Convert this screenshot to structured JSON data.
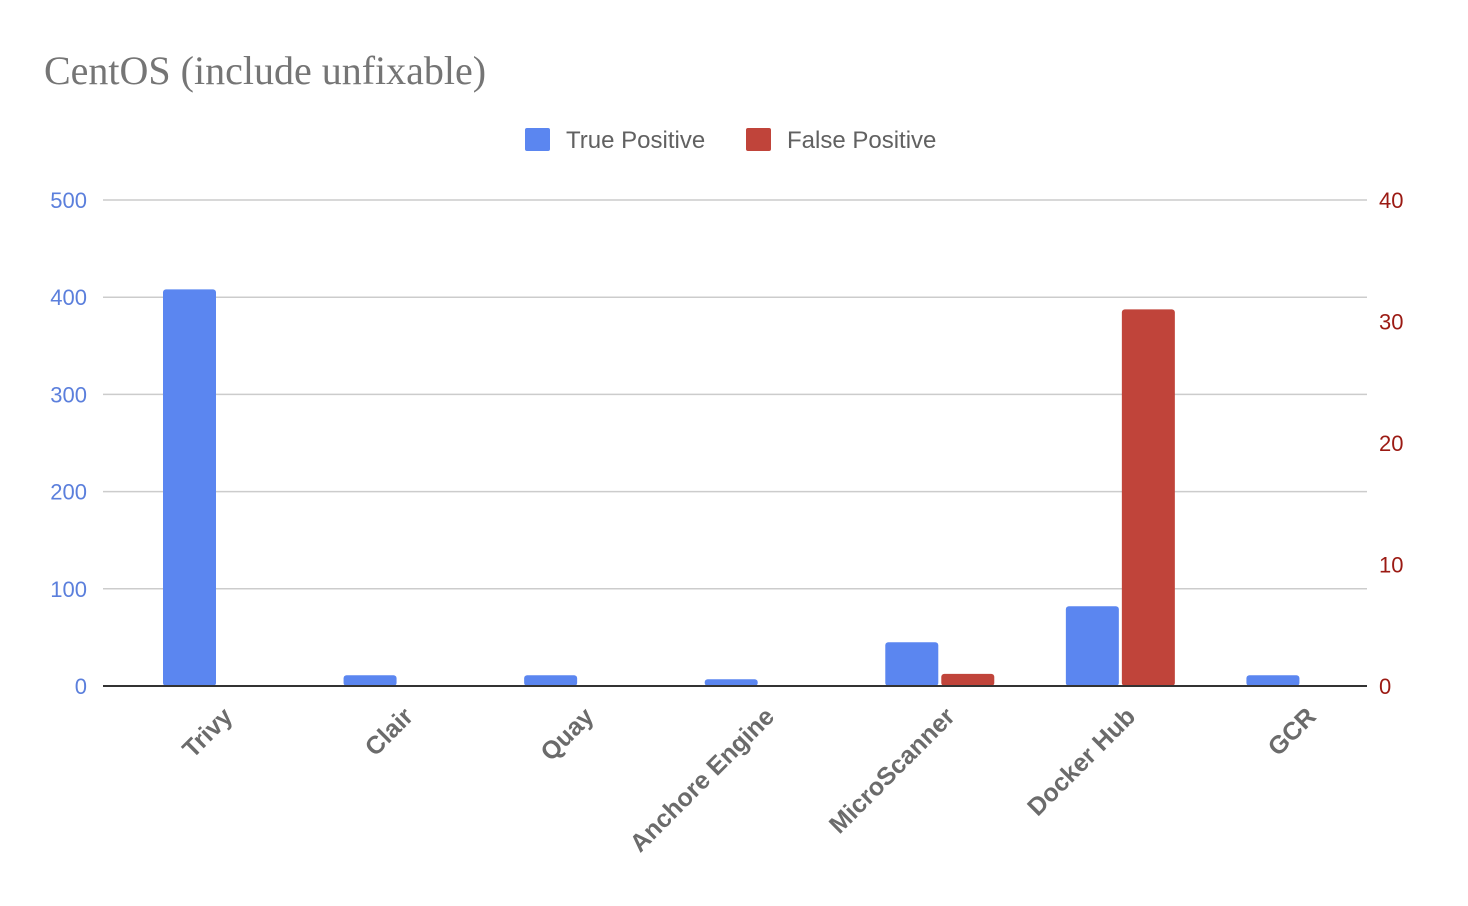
{
  "chart_data": {
    "type": "bar",
    "title": "CentOS (include unfixable)",
    "categories": [
      "Trivy",
      "Clair",
      "Quay",
      "Anchore Engine",
      "MicroScanner",
      "Docker Hub",
      "GCR"
    ],
    "series": [
      {
        "name": "True Positive",
        "axis": "left",
        "color": "#5b86f0",
        "values": [
          408,
          11,
          11,
          7,
          45,
          82,
          11
        ]
      },
      {
        "name": "False Positive",
        "axis": "right",
        "color": "#c0443a",
        "values": [
          0,
          0,
          0,
          0,
          1,
          31,
          0
        ]
      }
    ],
    "left_axis": {
      "ylim": [
        0,
        500
      ],
      "ticks": [
        "0",
        "100",
        "200",
        "300",
        "400",
        "500"
      ],
      "color": "#5b7fdc"
    },
    "right_axis": {
      "ylim": [
        0,
        40
      ],
      "ticks": [
        "0",
        "10",
        "20",
        "30",
        "40"
      ],
      "color": "#9b1a13"
    },
    "xlabel": "",
    "ylabel": "",
    "grid": true,
    "legend_position": "top-center"
  }
}
